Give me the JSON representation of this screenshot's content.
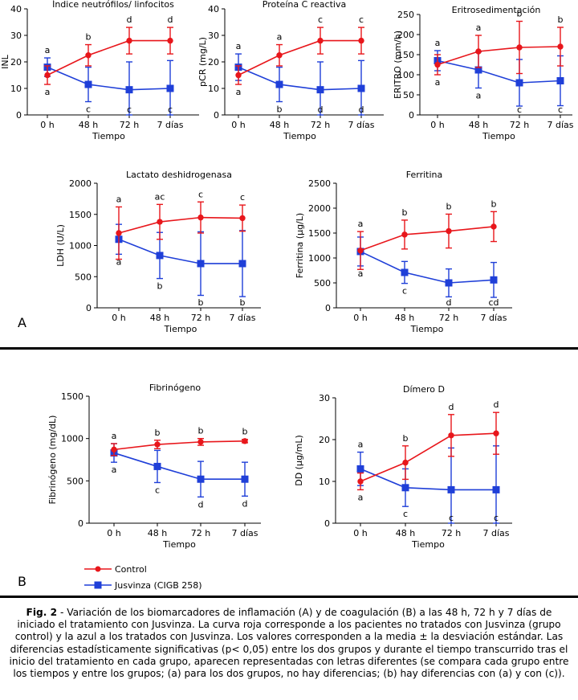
{
  "panel_letters": {
    "a": "A",
    "b": "B"
  },
  "legend": {
    "control": {
      "label": "Control",
      "color": "#e8161b"
    },
    "jusvinza": {
      "label": "Jusvinza (CIGB 258)",
      "color": "#1f3fd8"
    }
  },
  "caption": {
    "label": "Fig. 2",
    "text": " - Variación de los biomarcadores de inflamación (A) y de coagulación (B) a las 48 h, 72 h y 7 días de iniciado el tratamiento con Jusvinza. La curva roja corresponde a los pacientes no tratados con Jusvinza (grupo control) y la azul a los tratados con Jusvinza. Los valores corresponden a la media ± la desviación estándar. Las diferencias estadísticamente significativas (p< 0,05) entre los dos grupos y durante el tiempo transcurrido tras el inicio del tratamiento en cada grupo, aparecen representadas con letras diferentes (se compara cada grupo entre los tiempos y entre los grupos; (a) para los dos grupos, no hay diferencias; (b) hay diferencias con (a) y con (c))."
  },
  "chart_data": [
    {
      "type": "line",
      "title": "Índice neutrófilos/ linfocitos",
      "xlabel": "Tiempo",
      "ylabel": "INL",
      "categories": [
        "0 h",
        "48 h",
        "72 h",
        "7 días"
      ],
      "ylim": [
        0,
        40
      ],
      "yticks": [
        0,
        10,
        20,
        30,
        40
      ],
      "series": [
        {
          "name": "Control",
          "values": [
            15,
            22.5,
            28,
            28
          ],
          "sd": [
            3.5,
            4,
            5,
            5
          ],
          "letters": [
            "a",
            "b",
            "d",
            "d"
          ]
        },
        {
          "name": "Jusvinza (CIGB 258)",
          "values": [
            18,
            11.5,
            9.5,
            10
          ],
          "sd": [
            3.5,
            6.5,
            10.5,
            10.5
          ],
          "letters": [
            "a",
            "c",
            "c",
            "c"
          ]
        }
      ]
    },
    {
      "type": "line",
      "title": "Proteína C reactiva",
      "xlabel": "Tiempo",
      "ylabel": "pCR (mg/L)",
      "categories": [
        "0 h",
        "48 h",
        "72 h",
        "7 días"
      ],
      "ylim": [
        0,
        40
      ],
      "yticks": [
        0,
        10,
        20,
        30,
        40
      ],
      "series": [
        {
          "name": "Control",
          "values": [
            15,
            22.5,
            28,
            28
          ],
          "sd": [
            3.5,
            4,
            5,
            5
          ],
          "letters": [
            "a",
            "a",
            "c",
            "c"
          ]
        },
        {
          "name": "Jusvinza (CIGB 258)",
          "values": [
            18,
            11.5,
            9.5,
            10
          ],
          "sd": [
            5,
            6.5,
            10.5,
            10.5
          ],
          "letters": [
            "a",
            "b",
            "d",
            "d"
          ]
        }
      ]
    },
    {
      "type": "line",
      "title": "Eritrosedimentación",
      "xlabel": "Tiempo",
      "ylabel": "ERITRO (mm/h)",
      "categories": [
        "0 h",
        "48 h",
        "72 h",
        "7 días"
      ],
      "ylim": [
        0,
        250
      ],
      "yticks": [
        0,
        50,
        100,
        150,
        200,
        250
      ],
      "series": [
        {
          "name": "Control",
          "values": [
            125,
            158,
            168,
            170
          ],
          "sd": [
            25,
            40,
            65,
            48
          ],
          "letters": [
            "a",
            "a",
            "b",
            "b"
          ]
        },
        {
          "name": "Jusvinza (CIGB 258)",
          "values": [
            135,
            112,
            80,
            85
          ],
          "sd": [
            25,
            45,
            58,
            62
          ],
          "letters": [
            "a",
            "a",
            "c",
            "c"
          ]
        }
      ]
    },
    {
      "type": "line",
      "title": "Lactato deshidrogenasa",
      "xlabel": "Tiempo",
      "ylabel": "LDH (U/L)",
      "categories": [
        "0 h",
        "48 h",
        "72 h",
        "7 días"
      ],
      "ylim": [
        0,
        2000
      ],
      "yticks": [
        0,
        500,
        1000,
        1500,
        2000
      ],
      "series": [
        {
          "name": "Control",
          "values": [
            1200,
            1380,
            1450,
            1440
          ],
          "sd": [
            420,
            280,
            250,
            210
          ],
          "letters": [
            "a",
            "ac",
            "c",
            "c"
          ]
        },
        {
          "name": "Jusvinza (CIGB 258)",
          "values": [
            1100,
            840,
            710,
            710
          ],
          "sd": [
            240,
            370,
            510,
            530
          ],
          "letters": [
            "a",
            "b",
            "b",
            "b"
          ]
        }
      ]
    },
    {
      "type": "line",
      "title": "Ferritina",
      "xlabel": "Tiempo",
      "ylabel": "Ferritina (µg/L)",
      "categories": [
        "0 h",
        "48 h",
        "72 h",
        "7 días"
      ],
      "ylim": [
        0,
        2500
      ],
      "yticks": [
        0,
        500,
        1000,
        1500,
        2000,
        2500
      ],
      "series": [
        {
          "name": "Control",
          "values": [
            1150,
            1470,
            1540,
            1630
          ],
          "sd": [
            380,
            290,
            340,
            300
          ],
          "letters": [
            "a",
            "b",
            "b",
            "b"
          ]
        },
        {
          "name": "Jusvinza (CIGB 258)",
          "values": [
            1130,
            710,
            500,
            560
          ],
          "sd": [
            290,
            220,
            280,
            350
          ],
          "letters": [
            "a",
            "c",
            "d",
            "cd"
          ]
        }
      ]
    },
    {
      "type": "line",
      "title": "Fibrinógeno",
      "xlabel": "Tiempo",
      "ylabel": "Fibrinógeno (mg/dL)",
      "categories": [
        "0 h",
        "48 h",
        "72 h",
        "7 días"
      ],
      "ylim": [
        0,
        1500
      ],
      "yticks": [
        0,
        500,
        1000,
        1500
      ],
      "series": [
        {
          "name": "Control",
          "values": [
            870,
            930,
            960,
            970
          ],
          "sd": [
            70,
            50,
            40,
            20
          ],
          "letters": [
            "a",
            "b",
            "b",
            "b"
          ]
        },
        {
          "name": "Jusvinza (CIGB 258)",
          "values": [
            830,
            670,
            520,
            520
          ],
          "sd": [
            110,
            190,
            210,
            200
          ],
          "letters": [
            "a",
            "c",
            "d",
            "d"
          ]
        }
      ]
    },
    {
      "type": "line",
      "title": "Dímero D",
      "xlabel": "Tiempo",
      "ylabel": "DD (µg/mL)",
      "categories": [
        "0 h",
        "48 h",
        "72 h",
        "7 días"
      ],
      "ylim": [
        0,
        30
      ],
      "yticks": [
        0,
        10,
        20,
        30
      ],
      "series": [
        {
          "name": "Control",
          "values": [
            10,
            14.5,
            21,
            21.5
          ],
          "sd": [
            2,
            4,
            5,
            5
          ],
          "letters": [
            "a",
            "b",
            "d",
            "d"
          ]
        },
        {
          "name": "Jusvinza (CIGB 258)",
          "values": [
            13,
            8.5,
            8,
            8
          ],
          "sd": [
            4,
            4.5,
            10,
            10.5
          ],
          "letters": [
            "a",
            "c",
            "c",
            "c"
          ]
        }
      ]
    }
  ]
}
